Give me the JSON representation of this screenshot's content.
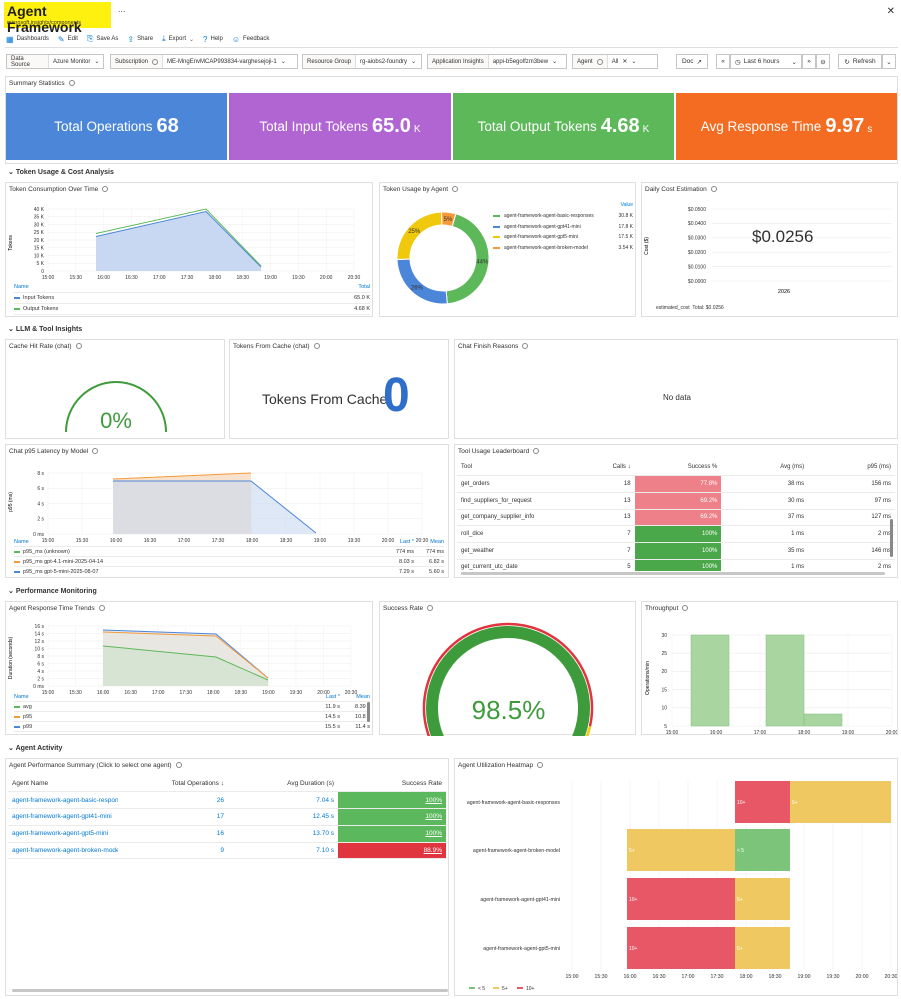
{
  "header": {
    "title": "Agent Framework",
    "subtitle": "microsoft.insights/components",
    "more": "...",
    "close": "✕"
  },
  "toolbar": {
    "items": [
      {
        "label": "Dashboards",
        "icon": "dashboards-icon"
      },
      {
        "label": "Edit",
        "icon": "edit-icon"
      },
      {
        "label": "Save As",
        "icon": "save-icon"
      },
      {
        "label": "Share",
        "icon": "share-icon"
      },
      {
        "label": "Export",
        "icon": "export-icon"
      },
      {
        "label": "Help",
        "icon": "help-icon"
      },
      {
        "label": "Feedback",
        "icon": "feedback-icon"
      }
    ]
  },
  "params": {
    "data_source": {
      "label": "Data Source",
      "value": "Azure Monitor"
    },
    "subscription": {
      "label": "Subscription",
      "value": "ME-MngEnvMCAP993834-varghesejoji-1"
    },
    "resource_group": {
      "label": "Resource Group",
      "value": "rg-aiobs2-foundry"
    },
    "app_insights": {
      "label": "Application Insights",
      "value": "appi-b5egolfzm3bew"
    },
    "agent": {
      "label": "Agent",
      "value": "All"
    },
    "doc": "Doc",
    "time": "Last 6 hours",
    "refresh": "Refresh"
  },
  "summary": {
    "title": "Summary Statistics",
    "tiles": [
      {
        "label": "Total Operations",
        "value": "68",
        "unit": "",
        "color": "#4b86d9"
      },
      {
        "label": "Total Input Tokens",
        "value": "65.0",
        "unit": "K",
        "color": "#b065d3"
      },
      {
        "label": "Total Output Tokens",
        "value": "4.68",
        "unit": "K",
        "color": "#5db85a"
      },
      {
        "label": "Avg Response Time",
        "value": "9.97",
        "unit": "s",
        "color": "#f36c21"
      }
    ]
  },
  "sections": {
    "token": "Token Usage & Cost Analysis",
    "llm": "LLM & Tool Insights",
    "perf": "Performance Monitoring",
    "activity": "Agent Activity"
  },
  "token_time": {
    "title": "Token Consumption Over Time",
    "ylabel": "Tokens",
    "yticks": [
      "40 K",
      "35 K",
      "30 K",
      "25 K",
      "20 K",
      "15 K",
      "10 K",
      "5 K",
      "0"
    ],
    "xticks": [
      "15:00",
      "15:30",
      "16:00",
      "16:30",
      "17:00",
      "17:30",
      "18:00",
      "18:30",
      "19:00",
      "19:30",
      "20:00",
      "20:30"
    ],
    "legend_name": "Name",
    "legend_total": "Total",
    "legend": [
      {
        "name": "Input Tokens",
        "total": "65.0 K",
        "color": "#4b86d9"
      },
      {
        "name": "Output Tokens",
        "total": "4.68 K",
        "color": "#5db85a"
      }
    ]
  },
  "token_agent": {
    "title": "Token Usage by Agent",
    "value_header": "Value",
    "rows": [
      {
        "name": "agent-framework-agent-basic-responses",
        "value": "30.8 K",
        "pct": "44%",
        "color": "#5db85a",
        "share": 44
      },
      {
        "name": "agent-framework-agent-gpt41-mini",
        "value": "17.8 K",
        "pct": "26%",
        "color": "#4b86d9",
        "share": 26
      },
      {
        "name": "agent-framework-agent-gpt5-mini",
        "value": "17.5 K",
        "pct": "25%",
        "color": "#f0c90c",
        "share": 25
      },
      {
        "name": "agent-framework-agent-broken-model",
        "value": "3.54 K",
        "pct": "5%",
        "color": "#f59a3a",
        "share": 5
      }
    ]
  },
  "daily_cost": {
    "title": "Daily Cost Estimation",
    "yticks": [
      "$0.0500",
      "$0.0400",
      "$0.0300",
      "$0.0200",
      "$0.0100",
      "$0.0000"
    ],
    "ylabel": "Cost ($)",
    "value": "$0.0256",
    "xtick": "2026",
    "legend_name": "estimated_cost",
    "legend_total": "Total: $0.0256"
  },
  "cache_hit": {
    "title": "Cache Hit Rate (chat)",
    "value": "0%"
  },
  "tokens_cache": {
    "title": "Tokens From Cache (chat)",
    "label": "Tokens From Cache",
    "value": "0"
  },
  "finish": {
    "title": "Chat Finish Reasons",
    "empty": "No data"
  },
  "latency": {
    "title": "Chat p95 Latency by Model",
    "ylabel": "p95 (ms)",
    "yticks": [
      "8 s",
      "6 s",
      "4 s",
      "2 s",
      "0 ms"
    ],
    "xticks": [
      "15:00",
      "15:30",
      "16:00",
      "16:30",
      "17:00",
      "17:30",
      "18:00",
      "18:30",
      "19:00",
      "19:30",
      "20:00",
      "20:30"
    ],
    "legend_name": "Name",
    "legend_last": "Last *",
    "legend_mean": "Mean",
    "legend": [
      {
        "name": "p95_ms (unknown)",
        "last": "774 ms",
        "mean": "774 ms",
        "color": "#5db85a"
      },
      {
        "name": "p95_ms gpt-4.1-mini-2025-04-14",
        "last": "8.03 s",
        "mean": "6.82 s",
        "color": "#f59a3a"
      },
      {
        "name": "p95_ms gpt-5-mini-2025-08-07",
        "last": "7.29 s",
        "mean": "5.60 s",
        "color": "#4b86d9"
      }
    ]
  },
  "leaderboard": {
    "title": "Tool Usage Leaderboard",
    "headers": {
      "tool": "Tool",
      "calls": "Calls",
      "success": "Success %",
      "avg": "Avg (ms)",
      "p95": "p95 (ms)"
    },
    "rows": [
      {
        "tool": "get_orders",
        "calls": "18",
        "success": "77.8%",
        "avg": "38 ms",
        "p95": "156 ms",
        "good": false
      },
      {
        "tool": "find_suppliers_for_request",
        "calls": "13",
        "success": "69.2%",
        "avg": "30 ms",
        "p95": "97 ms",
        "good": false
      },
      {
        "tool": "get_company_supplier_info",
        "calls": "13",
        "success": "69.2%",
        "avg": "37 ms",
        "p95": "127 ms",
        "good": false
      },
      {
        "tool": "roll_dice",
        "calls": "7",
        "success": "100%",
        "avg": "1 ms",
        "p95": "2 ms",
        "good": true
      },
      {
        "tool": "get_weather",
        "calls": "7",
        "success": "100%",
        "avg": "35 ms",
        "p95": "146 ms",
        "good": true
      },
      {
        "tool": "get_current_utc_date",
        "calls": "5",
        "success": "100%",
        "avg": "1 ms",
        "p95": "2 ms",
        "good": true
      }
    ]
  },
  "resp_trend": {
    "title": "Agent Response Time Trends",
    "ylabel": "Duration (seconds)",
    "yticks": [
      "16 s",
      "14 s",
      "12 s",
      "10 s",
      "8 s",
      "6 s",
      "4 s",
      "2 s",
      "0 ms"
    ],
    "xticks": [
      "15:00",
      "15:30",
      "16:00",
      "16:30",
      "17:00",
      "17:30",
      "18:00",
      "18:30",
      "19:00",
      "19:30",
      "20:00",
      "20:30"
    ],
    "legend_name": "Name",
    "legend_last": "Last *",
    "legend_mean": "Mean",
    "legend": [
      {
        "name": "avg",
        "last": "11.9 s",
        "mean": "8.39 s",
        "color": "#5db85a"
      },
      {
        "name": "p95",
        "last": "14.5 s",
        "mean": "10.8 s",
        "color": "#f59a3a"
      },
      {
        "name": "p99",
        "last": "15.5 s",
        "mean": "11.4 s",
        "color": "#4b86d9"
      }
    ]
  },
  "success_rate": {
    "title": "Success Rate",
    "value": "98.5%",
    "fraction": 0.985
  },
  "throughput": {
    "title": "Throughput",
    "ylabel": "Operations/min",
    "yticks": [
      "30",
      "25",
      "20",
      "15",
      "10",
      "5"
    ],
    "xticks": [
      "15:00",
      "16:00",
      "17:00",
      "18:00",
      "19:00",
      "20:00"
    ]
  },
  "agent_perf": {
    "title": "Agent Performance Summary (Click to select one agent)",
    "headers": {
      "name": "Agent Name",
      "ops": "Total Operations",
      "dur": "Avg Duration (s)",
      "rate": "Success Rate"
    },
    "rows": [
      {
        "name": "agent-framework-agent-basic-responses",
        "ops": "26",
        "dur": "7.04 s",
        "rate": "100%",
        "good": true
      },
      {
        "name": "agent-framework-agent-gpt41-mini",
        "ops": "17",
        "dur": "12.45 s",
        "rate": "100%",
        "good": true
      },
      {
        "name": "agent-framework-agent-gpt5-mini",
        "ops": "16",
        "dur": "13.70 s",
        "rate": "100%",
        "good": true
      },
      {
        "name": "agent-framework-agent-broken-model",
        "ops": "9",
        "dur": "7.10 s",
        "rate": "88.9%",
        "good": false
      }
    ]
  },
  "heatmap": {
    "title": "Agent Utilization Heatmap",
    "agents": [
      "agent-framework-agent-basic-responses",
      "agent-framework-agent-broken-model",
      "agent-framework-agent-gpt41-mini",
      "agent-framework-agent-gpt5-mini"
    ],
    "xticks": [
      "15:00",
      "15:30",
      "16:00",
      "16:30",
      "17:00",
      "17:30",
      "18:00",
      "18:30",
      "19:00",
      "19:30",
      "20:00",
      "20:30"
    ],
    "legend": [
      {
        "label": "< 5",
        "color": "#7cc47a"
      },
      {
        "label": "5+",
        "color": "#f0c862"
      },
      {
        "label": "10+",
        "color": "#e85766"
      }
    ],
    "cells": [
      [
        {
          "label": "10+",
          "cls": "red"
        },
        {
          "label": "5+",
          "cls": "yellow"
        }
      ],
      [
        {
          "label": "5+",
          "cls": "yellow"
        },
        {
          "label": "< 5",
          "cls": "green"
        }
      ],
      [
        {
          "label": "10+",
          "cls": "red"
        },
        {
          "label": "5+",
          "cls": "yellow"
        }
      ],
      [
        {
          "label": "10+",
          "cls": "red"
        },
        {
          "label": "5+",
          "cls": "yellow"
        }
      ]
    ]
  },
  "colors": {
    "blue": "#4b86d9",
    "green": "#5db85a",
    "orange": "#f59a3a",
    "red": "#e0343f",
    "gauge_green": "#3e9b3c"
  }
}
